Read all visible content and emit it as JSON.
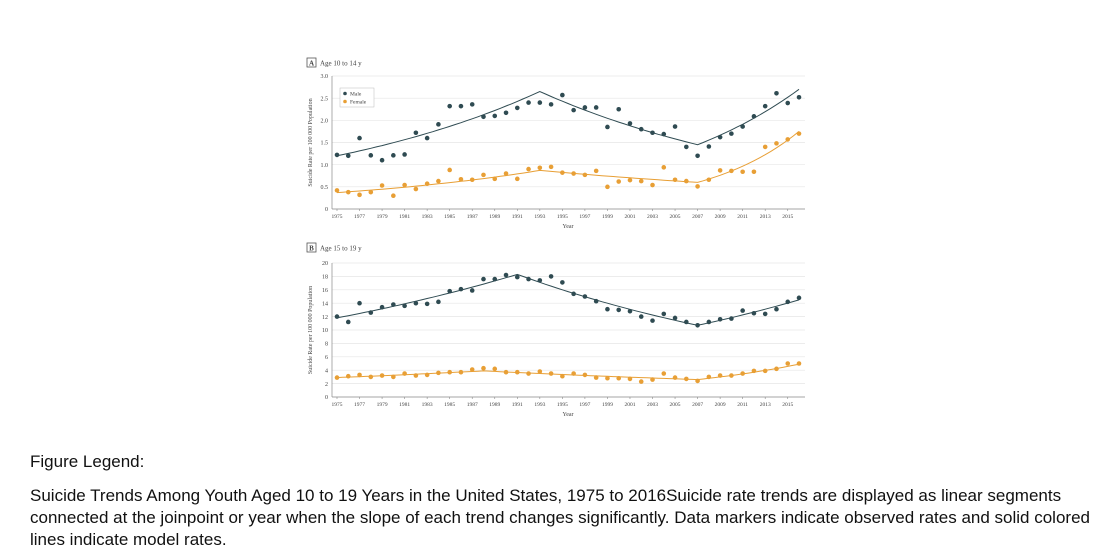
{
  "chart_data": [
    {
      "type": "scatter+line",
      "panel_letter": "A",
      "title": "Age 10 to 14 y",
      "xlabel": "Year",
      "ylabel": "Suicide Rate per 100 000 Population",
      "xlim": [
        1975,
        2016
      ],
      "ylim": [
        0,
        3.0
      ],
      "yticks": [
        0,
        0.5,
        1.0,
        1.5,
        2.0,
        2.5,
        3.0
      ],
      "ytick_labels": [
        "0",
        "0.5",
        "1.0",
        "1.5",
        "2.0",
        "2.5",
        "3.0"
      ],
      "xticks": [
        1975,
        1977,
        1979,
        1981,
        1983,
        1985,
        1987,
        1989,
        1991,
        1993,
        1995,
        1997,
        1999,
        2001,
        2003,
        2005,
        2007,
        2009,
        2011,
        2013,
        2015
      ],
      "legend": "top-left",
      "grid": "horizontal",
      "series": [
        {
          "name": "Male",
          "color": "#2f4b52",
          "observed": [
            1.22,
            1.2,
            1.6,
            1.21,
            1.1,
            1.21,
            1.23,
            1.72,
            1.6,
            1.91,
            2.32,
            2.32,
            2.36,
            2.08,
            2.1,
            2.17,
            2.28,
            2.4,
            2.4,
            2.36,
            2.57,
            2.23,
            2.29,
            2.29,
            1.85,
            2.25,
            1.93,
            1.8,
            1.72,
            1.69,
            1.86,
            1.4,
            1.2,
            1.41,
            1.62,
            1.7,
            1.86,
            2.09,
            2.32,
            2.61,
            2.39,
            2.52
          ],
          "model_joinpoints": [
            [
              1975,
              1.2
            ],
            [
              1993,
              2.65
            ],
            [
              2007,
              1.45
            ],
            [
              2016,
              2.7
            ]
          ]
        },
        {
          "name": "Female",
          "color": "#e89f35",
          "observed": [
            0.42,
            0.38,
            0.32,
            0.38,
            0.53,
            0.3,
            0.54,
            0.45,
            0.57,
            0.63,
            0.88,
            0.67,
            0.66,
            0.77,
            0.68,
            0.8,
            0.68,
            0.9,
            0.93,
            0.95,
            0.82,
            0.8,
            0.77,
            0.86,
            0.5,
            0.62,
            0.65,
            0.63,
            0.54,
            0.94,
            0.66,
            0.63,
            0.51,
            0.66,
            0.87,
            0.86,
            0.84,
            0.84,
            1.4,
            1.48,
            1.57,
            1.7
          ],
          "model_joinpoints": [
            [
              1975,
              0.37
            ],
            [
              1993,
              0.87
            ],
            [
              2007,
              0.6
            ],
            [
              2016,
              1.75
            ]
          ]
        }
      ]
    },
    {
      "type": "scatter+line",
      "panel_letter": "B",
      "title": "Age 15 to 19 y",
      "xlabel": "Year",
      "ylabel": "Suicide Rate per 100 000 Population",
      "xlim": [
        1975,
        2016
      ],
      "ylim": [
        0,
        20
      ],
      "yticks": [
        0,
        2,
        4,
        6,
        8,
        10,
        12,
        14,
        16,
        18,
        20
      ],
      "ytick_labels": [
        "0",
        "2",
        "4",
        "6",
        "8",
        "10",
        "12",
        "14",
        "16",
        "18",
        "20"
      ],
      "xticks": [
        1975,
        1977,
        1979,
        1981,
        1983,
        1985,
        1987,
        1989,
        1991,
        1993,
        1995,
        1997,
        1999,
        2001,
        2003,
        2005,
        2007,
        2009,
        2011,
        2013,
        2015
      ],
      "grid": "horizontal",
      "series": [
        {
          "color": "#2f4b52",
          "observed": [
            12.0,
            11.2,
            14.0,
            12.6,
            13.4,
            13.8,
            13.6,
            14.0,
            13.9,
            14.2,
            15.8,
            16.1,
            15.9,
            17.6,
            17.6,
            18.2,
            17.9,
            17.6,
            17.4,
            18.0,
            17.1,
            15.4,
            15.0,
            14.3,
            13.1,
            13.0,
            12.8,
            12.0,
            11.4,
            12.4,
            11.8,
            11.2,
            10.7,
            11.2,
            11.6,
            11.7,
            12.9,
            12.5,
            12.4,
            13.1,
            14.2,
            14.8
          ],
          "model_joinpoints": [
            [
              1975,
              11.8
            ],
            [
              1991,
              18.3
            ],
            [
              2007,
              10.7
            ],
            [
              2016,
              14.5
            ]
          ]
        },
        {
          "color": "#e89f35",
          "observed": [
            2.9,
            3.1,
            3.3,
            3.0,
            3.2,
            3.0,
            3.5,
            3.2,
            3.3,
            3.6,
            3.7,
            3.7,
            4.1,
            4.3,
            4.2,
            3.7,
            3.7,
            3.5,
            3.8,
            3.5,
            3.1,
            3.5,
            3.3,
            2.9,
            2.8,
            2.8,
            2.7,
            2.3,
            2.6,
            3.5,
            2.9,
            2.7,
            2.4,
            3.0,
            3.2,
            3.2,
            3.5,
            3.9,
            3.9,
            4.2,
            5.0,
            5.0
          ],
          "model_joinpoints": [
            [
              1975,
              2.9
            ],
            [
              1988,
              3.9
            ],
            [
              2007,
              2.6
            ],
            [
              2016,
              4.9
            ]
          ]
        }
      ]
    }
  ],
  "figure_legend": {
    "heading": "Figure Legend:",
    "text": "Suicide Trends Among Youth Aged 10 to 19 Years in the United States, 1975 to 2016Suicide rate trends are displayed as linear segments connected at the joinpoint or year when the slope of each trend changes significantly. Data markers indicate observed rates and solid colored lines indicate model rates."
  }
}
